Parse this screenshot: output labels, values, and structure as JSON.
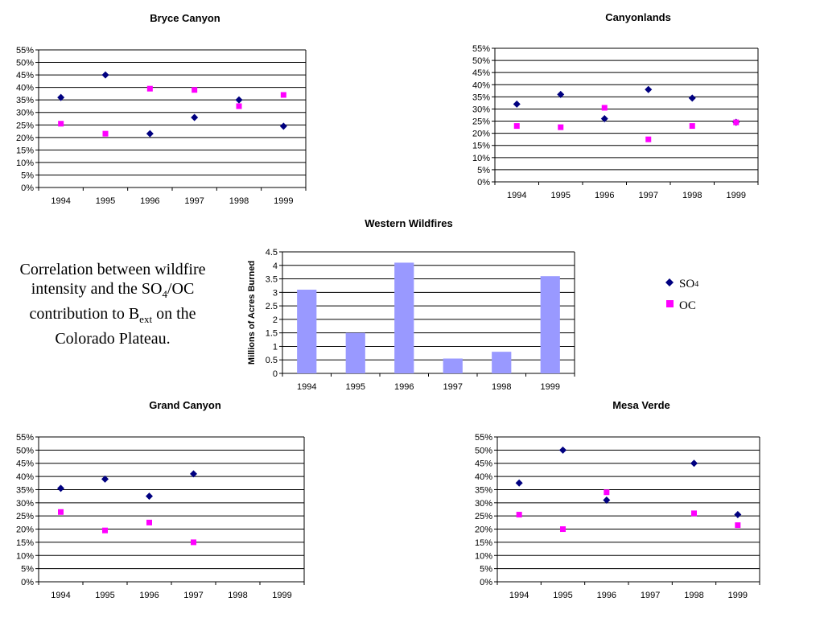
{
  "caption": {
    "line1": "Correlation between wildfire",
    "line2_pre": "intensity and the SO",
    "line2_sub": "4",
    "line2_post": "/OC",
    "line3_pre": "contribution to B",
    "line3_sub": "ext",
    "line3_post": " on the",
    "line4": "Colorado Plateau."
  },
  "legend": {
    "so4_main": "SO",
    "so4_sub": "4",
    "oc": "OC"
  },
  "colors": {
    "so4": "#000080",
    "oc": "#ff00ff",
    "bar": "#9999ff"
  },
  "chart_data": [
    {
      "id": "bryce",
      "type": "scatter",
      "title": "Bryce Canyon",
      "categories": [
        "1994",
        "1995",
        "1996",
        "1997",
        "1998",
        "1999"
      ],
      "ylim": [
        0,
        55
      ],
      "yticks": [
        "0%",
        "5%",
        "10%",
        "15%",
        "20%",
        "25%",
        "30%",
        "35%",
        "40%",
        "45%",
        "50%",
        "55%"
      ],
      "series": [
        {
          "name": "SO4",
          "values": [
            36,
            45,
            21.5,
            28,
            35,
            24.5
          ]
        },
        {
          "name": "OC",
          "values": [
            25.5,
            21.5,
            39.5,
            39,
            32.5,
            37
          ]
        }
      ],
      "grid": true
    },
    {
      "id": "canyonlands",
      "type": "scatter",
      "title": "Canyonlands",
      "categories": [
        "1994",
        "1995",
        "1996",
        "1997",
        "1998",
        "1999"
      ],
      "ylim": [
        0,
        55
      ],
      "yticks": [
        "0%",
        "5%",
        "10%",
        "15%",
        "20%",
        "25%",
        "30%",
        "35%",
        "40%",
        "45%",
        "50%",
        "55%"
      ],
      "series": [
        {
          "name": "SO4",
          "values": [
            32,
            36,
            26,
            38,
            34.5,
            24.5
          ]
        },
        {
          "name": "OC",
          "values": [
            23,
            22.5,
            30.5,
            17.5,
            23,
            24.5
          ]
        }
      ],
      "grid": true
    },
    {
      "id": "wildfires",
      "type": "bar",
      "title": "Western Wildfires",
      "ylabel": "Millions of Acres Burned",
      "categories": [
        "1994",
        "1995",
        "1996",
        "1997",
        "1998",
        "1999"
      ],
      "values": [
        3.1,
        1.5,
        4.1,
        0.55,
        0.8,
        3.6
      ],
      "ylim": [
        0,
        4.5
      ],
      "yticks": [
        "0",
        "0.5",
        "1",
        "1.5",
        "2",
        "2.5",
        "3",
        "3.5",
        "4",
        "4.5"
      ],
      "grid": true
    },
    {
      "id": "grandcanyon",
      "type": "scatter",
      "title": "Grand Canyon",
      "categories": [
        "1994",
        "1995",
        "1996",
        "1997",
        "1998",
        "1999"
      ],
      "ylim": [
        0,
        55
      ],
      "yticks": [
        "0%",
        "5%",
        "10%",
        "15%",
        "20%",
        "25%",
        "30%",
        "35%",
        "40%",
        "45%",
        "50%",
        "55%"
      ],
      "series": [
        {
          "name": "SO4",
          "values": [
            35.5,
            39,
            32.5,
            41,
            null,
            null
          ]
        },
        {
          "name": "OC",
          "values": [
            26.5,
            19.5,
            22.5,
            15,
            null,
            null
          ]
        }
      ],
      "grid": true
    },
    {
      "id": "mesaverde",
      "type": "scatter",
      "title": "Mesa Verde",
      "categories": [
        "1994",
        "1995",
        "1996",
        "1997",
        "1998",
        "1999"
      ],
      "ylim": [
        0,
        55
      ],
      "yticks": [
        "0%",
        "5%",
        "10%",
        "15%",
        "20%",
        "25%",
        "30%",
        "35%",
        "40%",
        "45%",
        "50%",
        "55%"
      ],
      "series": [
        {
          "name": "SO4",
          "values": [
            37.5,
            50,
            31,
            null,
            45,
            25.5
          ]
        },
        {
          "name": "OC",
          "values": [
            25.5,
            20,
            34,
            null,
            26,
            21.5
          ]
        }
      ],
      "grid": true
    }
  ]
}
